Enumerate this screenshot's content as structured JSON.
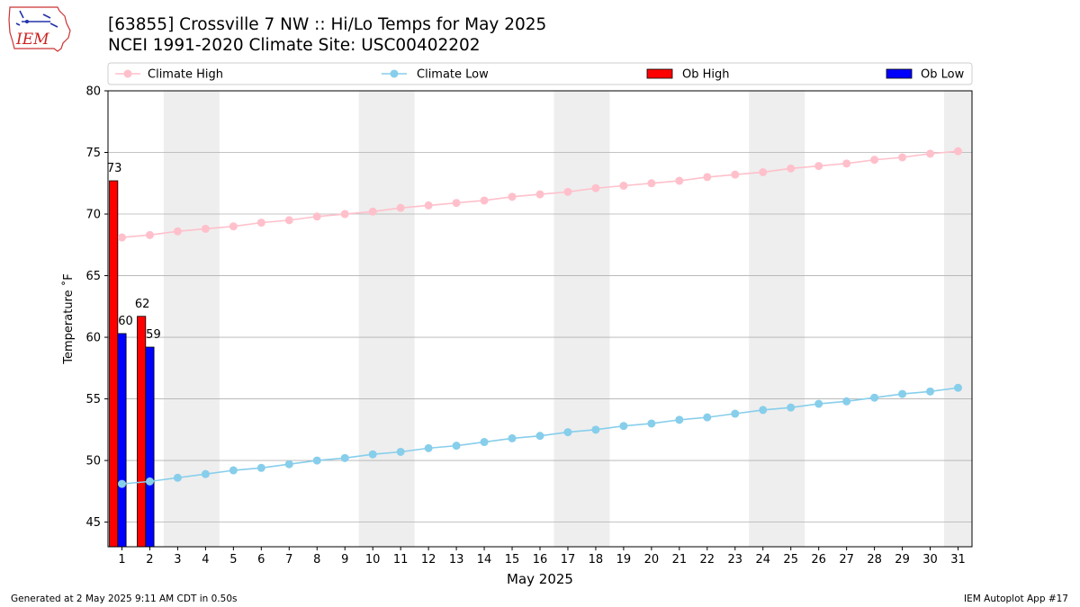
{
  "header": {
    "logo_text": "IEM",
    "title_line1": "[63855] Crossville 7 NW :: Hi/Lo Temps for May 2025",
    "title_line2": "NCEI 1991-2020 Climate Site: USC00402202"
  },
  "footer": {
    "generated": "Generated at 2 May 2025 9:11 AM CDT in 0.50s",
    "app": "IEM Autoplot App #17"
  },
  "colors": {
    "climate_high": "#ffc0cb",
    "climate_low": "#87ceeb",
    "ob_high": "#ff0000",
    "ob_low": "#0000ff",
    "weekend_shade": "#eeeeee",
    "grid": "#b0b0b0"
  },
  "chart_data": {
    "type": "bar",
    "xlabel": "May 2025",
    "ylabel": "Temperature ˚F",
    "xlim": [
      0.5,
      31.5
    ],
    "ylim": [
      43,
      80
    ],
    "yticks": [
      45,
      50,
      55,
      60,
      65,
      70,
      75,
      80
    ],
    "x": [
      1,
      2,
      3,
      4,
      5,
      6,
      7,
      8,
      9,
      10,
      11,
      12,
      13,
      14,
      15,
      16,
      17,
      18,
      19,
      20,
      21,
      22,
      23,
      24,
      25,
      26,
      27,
      28,
      29,
      30,
      31
    ],
    "grid": "horizontal",
    "legend_position": "top",
    "weekend_shading": [
      [
        3,
        4
      ],
      [
        10,
        11
      ],
      [
        17,
        18
      ],
      [
        24,
        25
      ],
      [
        31,
        31
      ]
    ],
    "legend": [
      "Climate High",
      "Climate Low",
      "Ob High",
      "Ob Low"
    ],
    "series": [
      {
        "name": "Climate High",
        "type": "line",
        "values": [
          68.1,
          68.3,
          68.6,
          68.8,
          69.0,
          69.3,
          69.5,
          69.8,
          70.0,
          70.2,
          70.5,
          70.7,
          70.9,
          71.1,
          71.4,
          71.6,
          71.8,
          72.1,
          72.3,
          72.5,
          72.7,
          73.0,
          73.2,
          73.4,
          73.7,
          73.9,
          74.1,
          74.4,
          74.6,
          74.9,
          75.1
        ]
      },
      {
        "name": "Climate Low",
        "type": "line",
        "values": [
          48.1,
          48.3,
          48.6,
          48.9,
          49.2,
          49.4,
          49.7,
          50.0,
          50.2,
          50.5,
          50.7,
          51.0,
          51.2,
          51.5,
          51.8,
          52.0,
          52.3,
          52.5,
          52.8,
          53.0,
          53.3,
          53.5,
          53.8,
          54.1,
          54.3,
          54.6,
          54.8,
          55.1,
          55.4,
          55.6,
          55.9
        ]
      },
      {
        "name": "Ob High",
        "type": "bar",
        "x": [
          1,
          2
        ],
        "values": [
          72.7,
          61.7
        ],
        "labels": [
          "73",
          "62"
        ]
      },
      {
        "name": "Ob Low",
        "type": "bar",
        "x": [
          1,
          2
        ],
        "values": [
          60.3,
          59.2
        ],
        "labels": [
          "60",
          "59"
        ]
      }
    ]
  }
}
